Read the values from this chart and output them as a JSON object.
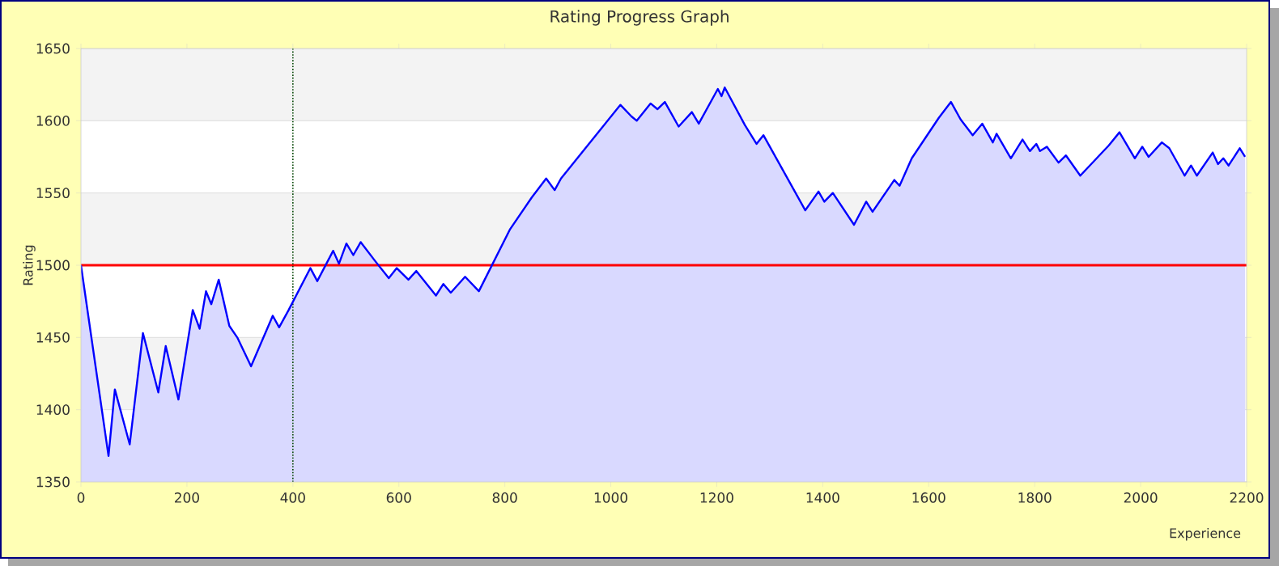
{
  "chart_data": {
    "type": "area",
    "title": "Rating Progress Graph",
    "xlabel": "Experience",
    "ylabel": "Rating",
    "xlim": [
      0,
      2200
    ],
    "ylim": [
      1350,
      1650
    ],
    "xticks": [
      0,
      200,
      400,
      600,
      800,
      1000,
      1200,
      1400,
      1600,
      1800,
      2000,
      2200
    ],
    "yticks": [
      1350,
      1400,
      1450,
      1500,
      1550,
      1600,
      1650
    ],
    "grid": "y",
    "series": [
      {
        "color": "#0000ff",
        "x": [
          0,
          52,
          64,
          92,
          117,
          146,
          160,
          184,
          211,
          224,
          236,
          246,
          260,
          280,
          295,
          321,
          362,
          374,
          392,
          433,
          446,
          476,
          487,
          501,
          514,
          528,
          555,
          581,
          596,
          618,
          633,
          670,
          684,
          698,
          725,
          751,
          810,
          851,
          878,
          894,
          906,
          1018,
          1039,
          1049,
          1075,
          1088,
          1102,
          1128,
          1153,
          1166,
          1202,
          1209,
          1215,
          1253,
          1275,
          1288,
          1367,
          1392,
          1403,
          1419,
          1459,
          1482,
          1494,
          1535,
          1545,
          1568,
          1619,
          1642,
          1660,
          1683,
          1701,
          1721,
          1728,
          1755,
          1777,
          1791,
          1803,
          1810,
          1823,
          1845,
          1859,
          1886,
          1940,
          1960,
          1989,
          2003,
          2015,
          2040,
          2054,
          2083,
          2095,
          2106,
          2136,
          2146,
          2156,
          2166,
          2187,
          2197
        ],
        "values": [
          1500,
          1368,
          1414,
          1376,
          1453,
          1412,
          1444,
          1407,
          1469,
          1456,
          1482,
          1473,
          1490,
          1458,
          1450,
          1430,
          1465,
          1457,
          1469,
          1498,
          1489,
          1510,
          1501,
          1515,
          1507,
          1516,
          1503,
          1491,
          1498,
          1490,
          1496,
          1479,
          1487,
          1481,
          1492,
          1482,
          1525,
          1547,
          1560,
          1552,
          1560,
          1611,
          1603,
          1600,
          1612,
          1608,
          1613,
          1596,
          1606,
          1598,
          1622,
          1617,
          1623,
          1597,
          1584,
          1590,
          1538,
          1551,
          1544,
          1550,
          1528,
          1544,
          1537,
          1559,
          1555,
          1574,
          1602,
          1613,
          1601,
          1590,
          1598,
          1585,
          1591,
          1574,
          1587,
          1579,
          1584,
          1579,
          1582,
          1571,
          1576,
          1562,
          1583,
          1592,
          1574,
          1582,
          1575,
          1585,
          1581,
          1562,
          1569,
          1562,
          1578,
          1570,
          1574,
          1569,
          1581,
          1575
        ]
      }
    ],
    "ref_lines": [
      {
        "axis": "y",
        "value": 1500,
        "color": "#ff0000",
        "line_style": "solid"
      },
      {
        "axis": "x",
        "value": 400,
        "color": "#004400",
        "line_style": "dotted"
      }
    ]
  }
}
